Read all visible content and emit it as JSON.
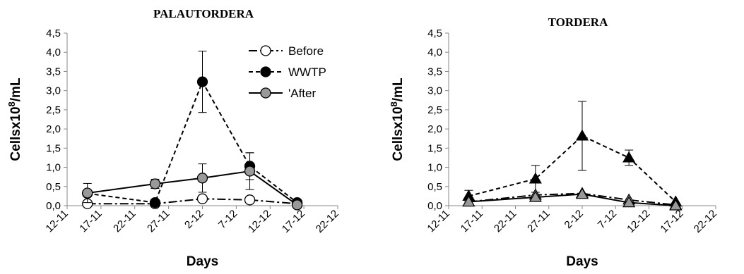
{
  "chart_data": [
    {
      "type": "line",
      "title": "PALAUTORDERA",
      "xlabel": "Days",
      "ylabel": "Cellsx10",
      "ylabel_sup": "8",
      "ylabel_unit": "/mL",
      "xlim": [
        "12-11",
        "22-12"
      ],
      "x_ticks": [
        "12-11",
        "17-11",
        "22-11",
        "27-11",
        "2-12",
        "7-12",
        "12-12",
        "17-12",
        "22-12"
      ],
      "ylim": [
        0,
        4.5
      ],
      "y_ticks": [
        "0,0",
        "0,5",
        "1,0",
        "1,5",
        "2,0",
        "2,5",
        "3,0",
        "3,5",
        "4,0",
        "4,5"
      ],
      "grid": false,
      "legend_position": "top-right",
      "series": [
        {
          "name": "Before",
          "line_style": "dashdot",
          "marker": "circle",
          "marker_fill": "#ffffff",
          "points": [
            {
              "x": "15-11",
              "y": 0.05
            },
            {
              "x": "25-11",
              "y": 0.05
            },
            {
              "x": "2-12",
              "y": 0.18
            },
            {
              "x": "9-12",
              "y": 0.15
            },
            {
              "x": "16-12",
              "y": 0.05
            }
          ]
        },
        {
          "name": "WWTP",
          "line_style": "dashed",
          "marker": "circle",
          "marker_fill": "#000000",
          "points": [
            {
              "x": "15-11",
              "y": 0.32,
              "err": 0.0
            },
            {
              "x": "25-11",
              "y": 0.08,
              "err": 0.0
            },
            {
              "x": "2-12",
              "y": 3.23,
              "err": 0.8
            },
            {
              "x": "9-12",
              "y": 1.03,
              "err": 0.35
            },
            {
              "x": "16-12",
              "y": 0.08,
              "err": 0.0
            }
          ]
        },
        {
          "name": "'After",
          "line_style": "solid",
          "marker": "circle",
          "marker_fill": "#999999",
          "points": [
            {
              "x": "15-11",
              "y": 0.33,
              "err": 0.25
            },
            {
              "x": "25-11",
              "y": 0.57,
              "err": 0.12
            },
            {
              "x": "2-12",
              "y": 0.72,
              "err": 0.37
            },
            {
              "x": "9-12",
              "y": 0.9,
              "err": 0.48
            },
            {
              "x": "16-12",
              "y": 0.02,
              "err": 0.0
            }
          ]
        }
      ]
    },
    {
      "type": "line",
      "title": "TORDERA",
      "xlabel": "Days",
      "ylabel": "Cellsx10",
      "ylabel_sup": "8",
      "ylabel_unit": "/mL",
      "xlim": [
        "12-11",
        "22-12"
      ],
      "x_ticks": [
        "12-11",
        "17-11",
        "22-11",
        "27-11",
        "2-12",
        "7-12",
        "12-12",
        "17-12",
        "22-12"
      ],
      "ylim": [
        0,
        4.5
      ],
      "y_ticks": [
        "0,0",
        "0,5",
        "1,0",
        "1,5",
        "2,0",
        "2,5",
        "3,0",
        "3,5",
        "4,0",
        "4,5"
      ],
      "grid": false,
      "legend_position": "none",
      "series": [
        {
          "name": "",
          "line_style": "dashed",
          "marker": "triangle",
          "marker_fill": "#000000",
          "points": [
            {
              "x": "15-11",
              "y": 0.25,
              "err": 0.15
            },
            {
              "x": "25-11",
              "y": 0.7,
              "err": 0.35
            },
            {
              "x": "2-12",
              "y": 1.82,
              "err": 0.9
            },
            {
              "x": "9-12",
              "y": 1.25,
              "err": 0.2
            },
            {
              "x": "16-12",
              "y": 0.1,
              "err": 0.0
            }
          ]
        },
        {
          "name": "",
          "line_style": "dashdot",
          "marker": "triangle",
          "marker_fill": "#999999",
          "points": [
            {
              "x": "15-11",
              "y": 0.1
            },
            {
              "x": "25-11",
              "y": 0.28
            },
            {
              "x": "2-12",
              "y": 0.32
            },
            {
              "x": "9-12",
              "y": 0.15
            },
            {
              "x": "16-12",
              "y": 0.02
            }
          ]
        },
        {
          "name": "",
          "line_style": "solid",
          "marker": "triangle",
          "marker_fill": "#999999",
          "points": [
            {
              "x": "15-11",
              "y": 0.1
            },
            {
              "x": "25-11",
              "y": 0.22
            },
            {
              "x": "2-12",
              "y": 0.3
            },
            {
              "x": "9-12",
              "y": 0.08
            },
            {
              "x": "16-12",
              "y": 0.0
            }
          ]
        }
      ]
    }
  ]
}
